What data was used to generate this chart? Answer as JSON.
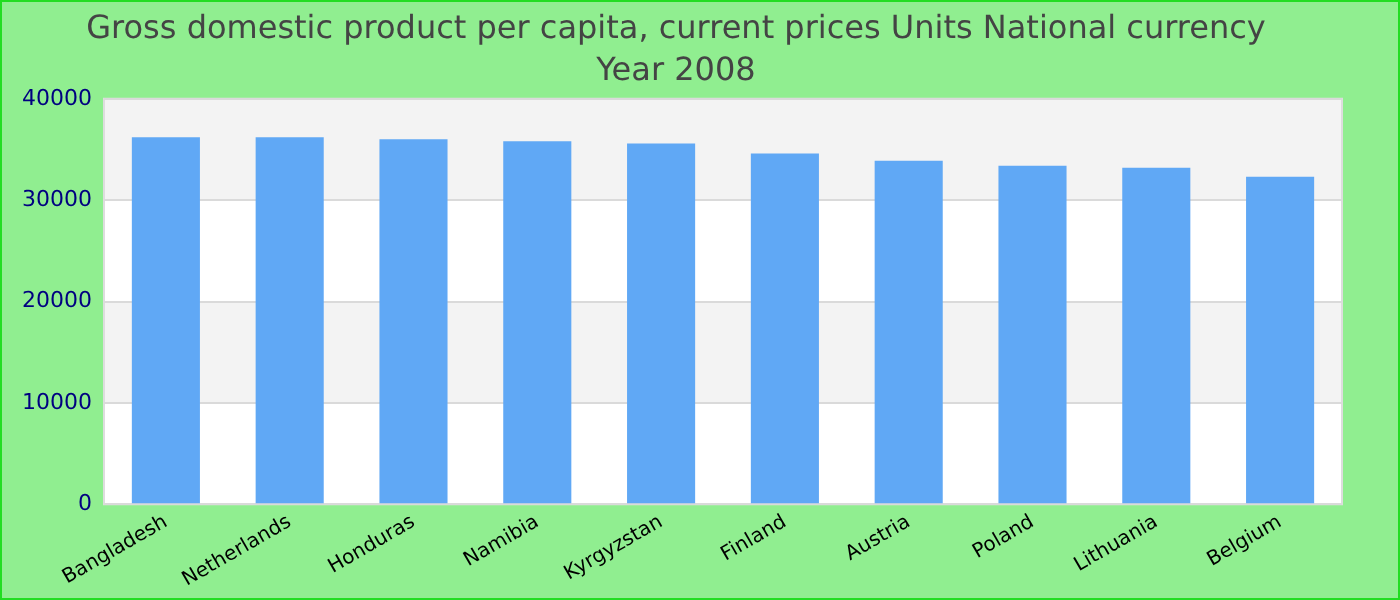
{
  "chart_data": {
    "type": "bar",
    "title": "Gross domestic product per capita, current prices Units National currency",
    "subtitle": "Year 2008",
    "categories": [
      "Bangladesh",
      "Netherlands",
      "Honduras",
      "Namibia",
      "Kyrgyzstan",
      "Finland",
      "Austria",
      "Poland",
      "Lithuania",
      "Belgium"
    ],
    "values": [
      36200,
      36200,
      36000,
      35800,
      35600,
      34600,
      33900,
      33400,
      33200,
      32300
    ],
    "color": "#60a8f5",
    "ylim": [
      0,
      40000
    ],
    "yticks": [
      0,
      10000,
      20000,
      30000,
      40000
    ],
    "grid": "y"
  }
}
